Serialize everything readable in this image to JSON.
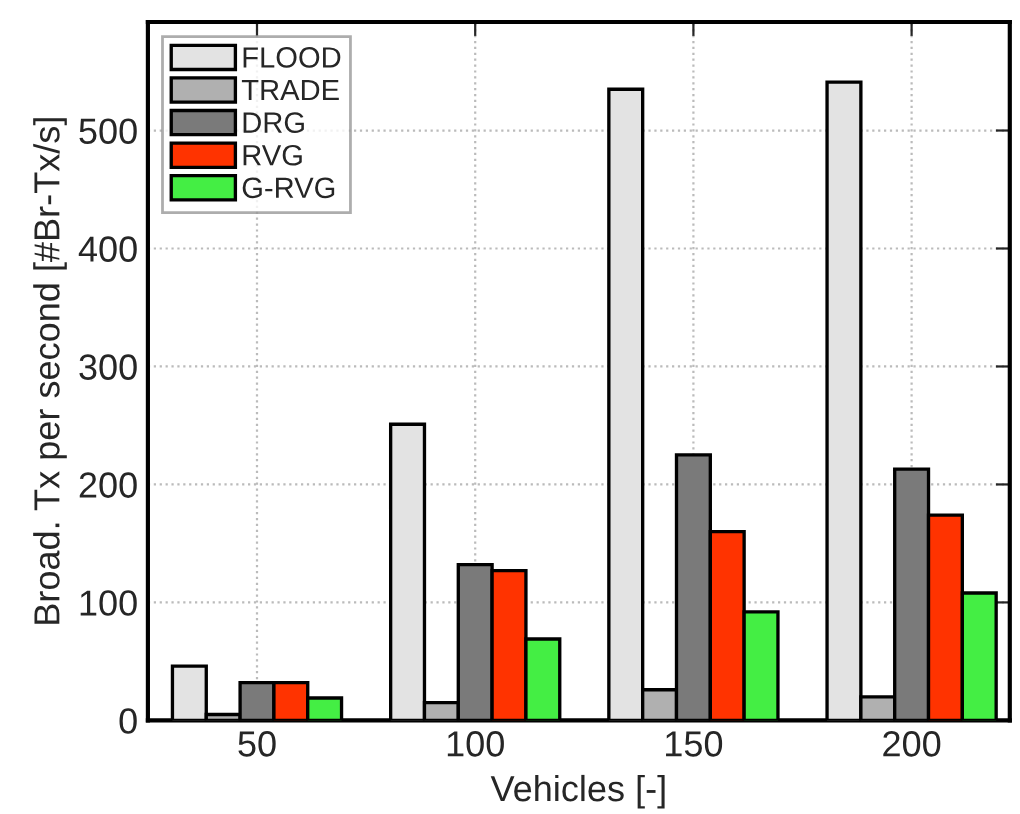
{
  "chart_data": {
    "type": "bar",
    "xlabel": "Vehicles [-]",
    "ylabel": "Broad. Tx per second [#Br-Tx/s]",
    "categories": [
      "50",
      "100",
      "150",
      "200"
    ],
    "series": [
      {
        "name": "FLOOD",
        "color": "#e3e3e3",
        "values": [
          46,
          251,
          535,
          541
        ]
      },
      {
        "name": "TRADE",
        "color": "#b0b0b0",
        "values": [
          5,
          15,
          26,
          20
        ]
      },
      {
        "name": "DRG",
        "color": "#7a7a7a",
        "values": [
          32,
          132,
          225,
          213
        ]
      },
      {
        "name": "RVG",
        "color": "#ff3300",
        "values": [
          32,
          127,
          160,
          174
        ]
      },
      {
        "name": "G-RVG",
        "color": "#44ee44",
        "values": [
          19,
          69,
          92,
          108
        ]
      }
    ],
    "ylim": [
      0,
      592
    ],
    "yticks": [
      0,
      100,
      200,
      300,
      400,
      500
    ],
    "grid": true,
    "legend": "top left"
  }
}
